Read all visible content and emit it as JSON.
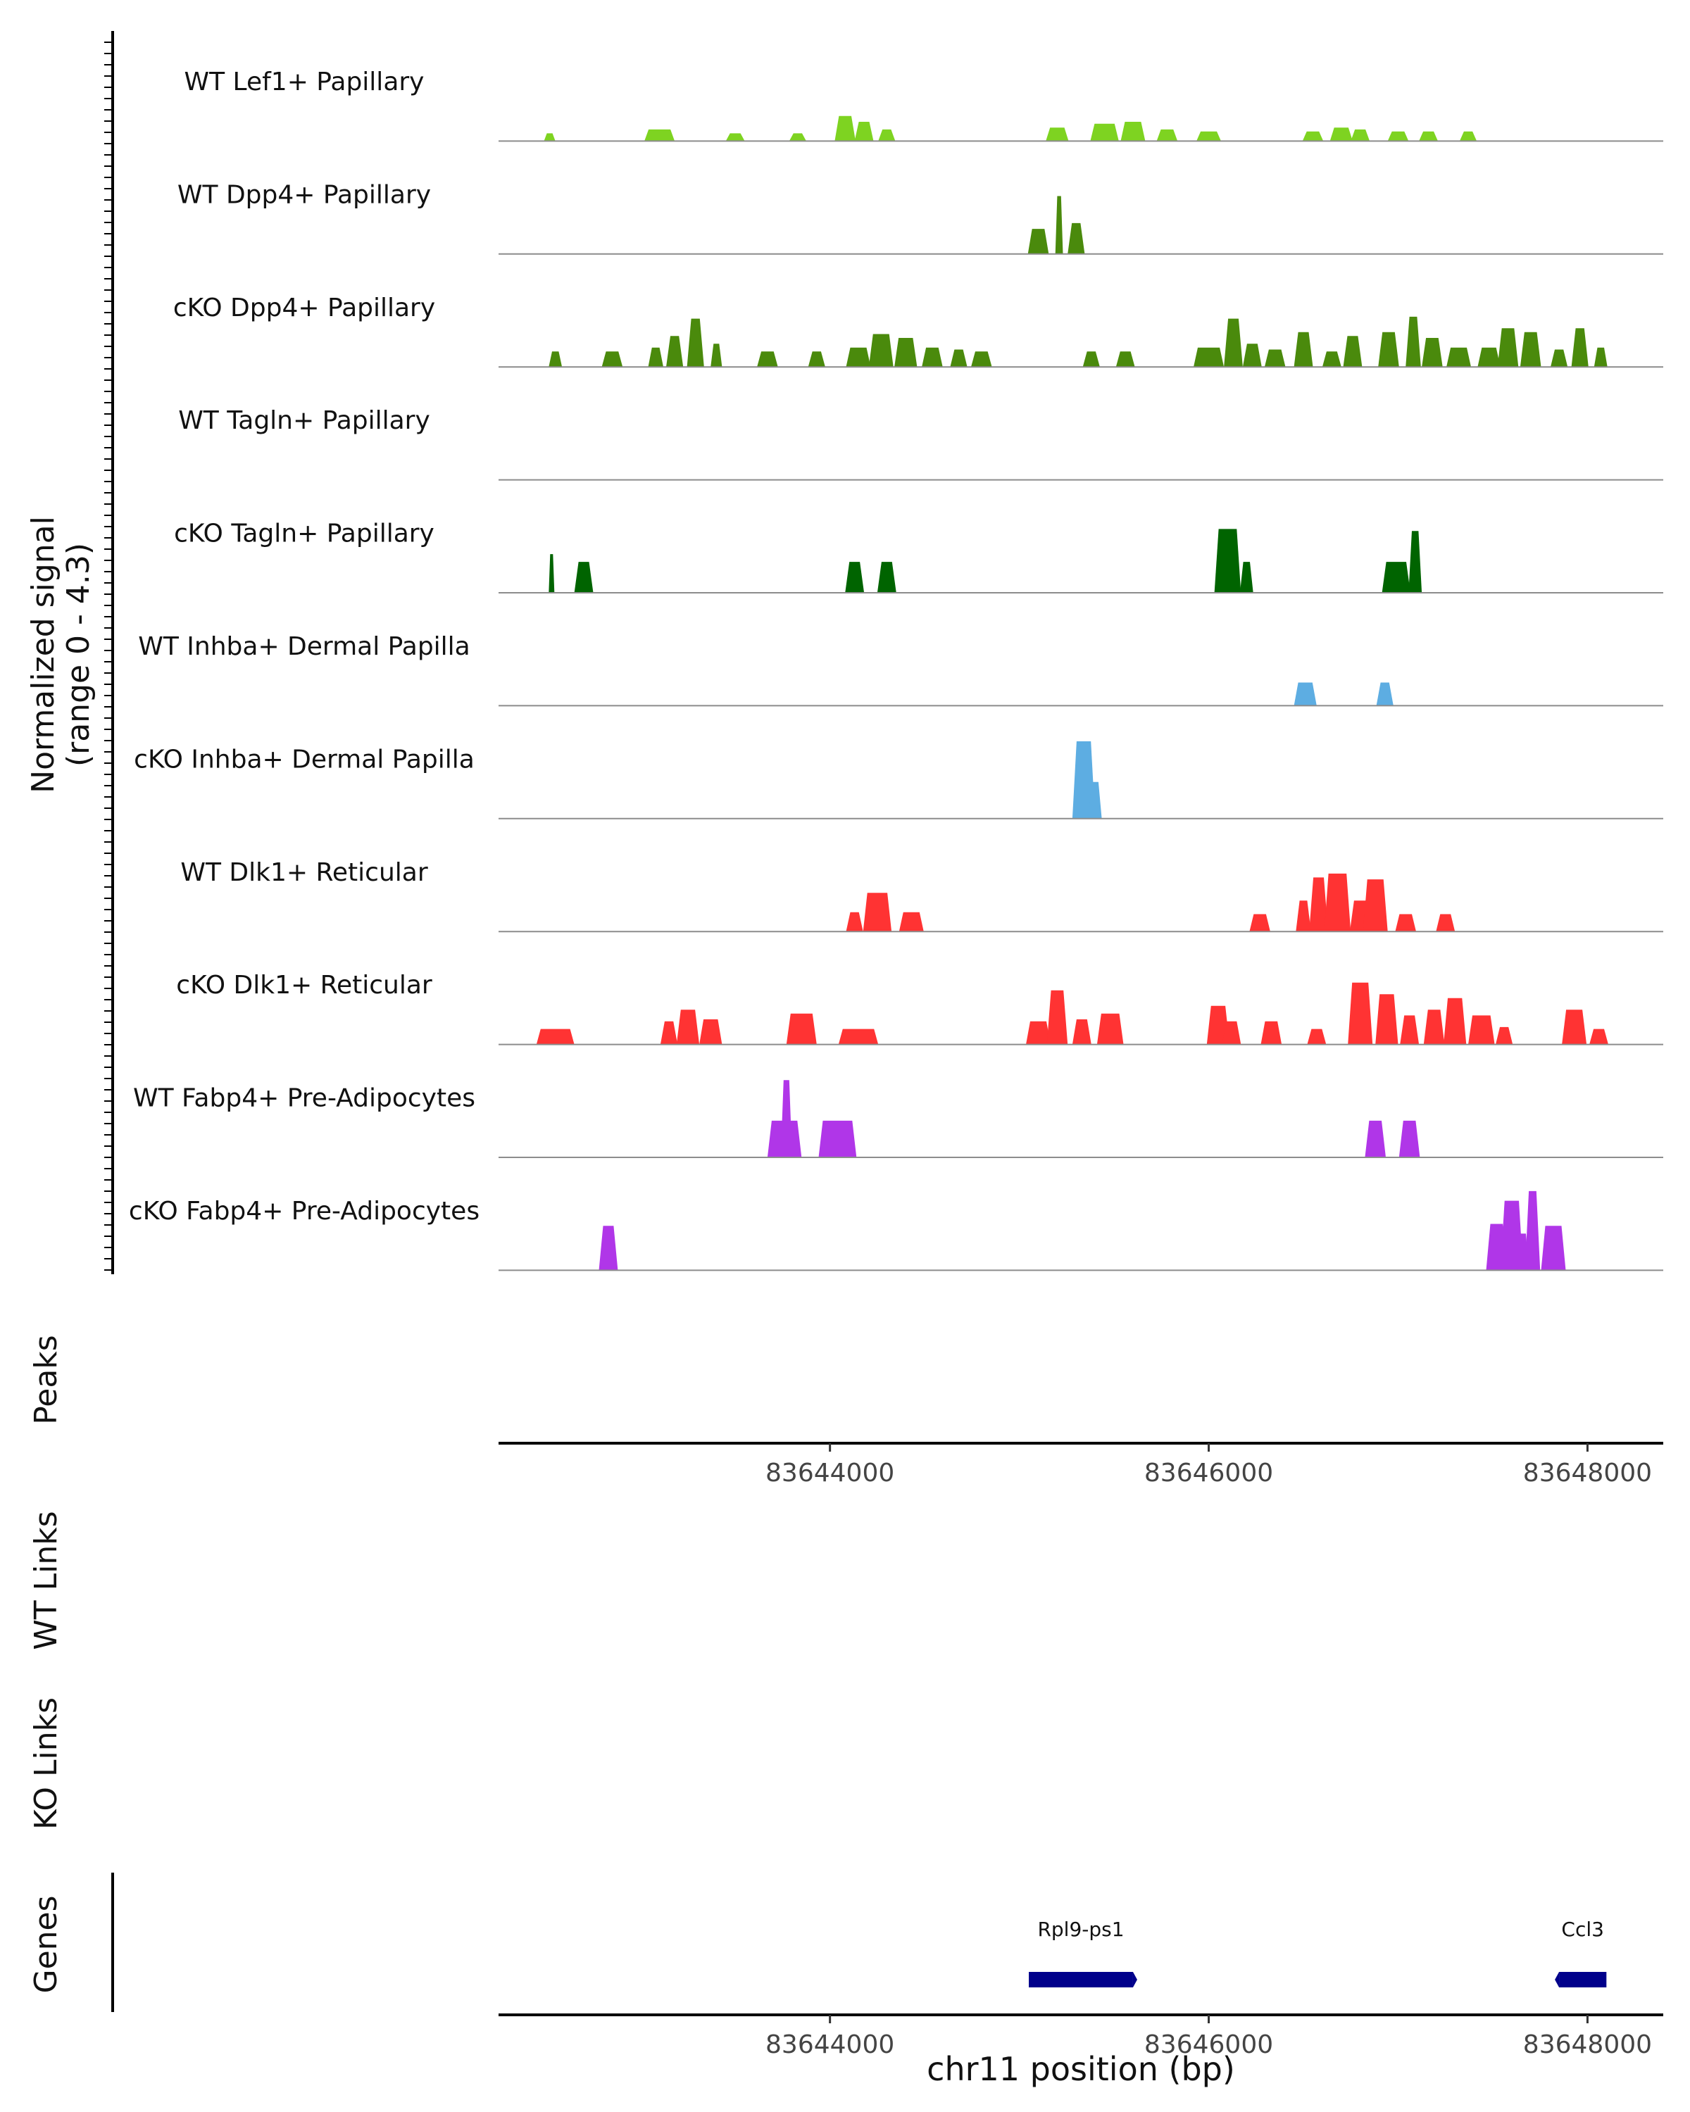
{
  "chart_data": {
    "type": "area",
    "title": "",
    "ylabel_line1": "Normalized signal",
    "ylabel_line2": "(range 0 - 4.3)",
    "ylim": [
      0,
      4.3
    ],
    "xlim": [
      83642250,
      83648400
    ],
    "xlabel": "chr11 position (bp)",
    "xticks": [
      83644000,
      83646000,
      83648000
    ],
    "xtick_labels": [
      "83644000",
      "83646000",
      "83648000"
    ],
    "panel_labels": {
      "peaks": "Peaks",
      "wt_links": "WT Links",
      "ko_links": "KO Links",
      "genes": "Genes"
    },
    "tracks": [
      {
        "label": "WT Lef1+ Papillary",
        "color": "#7ED321",
        "peaks": [
          [
            83642520,
            0.4,
            60
          ],
          [
            83643100,
            0.6,
            160
          ],
          [
            83643500,
            0.4,
            100
          ],
          [
            83643830,
            0.4,
            90
          ],
          [
            83644080,
            1.3,
            110
          ],
          [
            83644180,
            1.0,
            100
          ],
          [
            83644300,
            0.6,
            90
          ],
          [
            83645200,
            0.7,
            120
          ],
          [
            83645450,
            0.9,
            150
          ],
          [
            83645600,
            1.0,
            130
          ],
          [
            83645780,
            0.6,
            110
          ],
          [
            83646000,
            0.5,
            130
          ],
          [
            83646550,
            0.5,
            110
          ],
          [
            83646700,
            0.7,
            120
          ],
          [
            83646800,
            0.6,
            100
          ],
          [
            83647000,
            0.5,
            110
          ],
          [
            83647160,
            0.5,
            100
          ],
          [
            83647370,
            0.5,
            90
          ]
        ]
      },
      {
        "label": "WT Dpp4+ Papillary",
        "color": "#4A8A0C",
        "peaks": [
          [
            83645100,
            1.3,
            110
          ],
          [
            83645210,
            3.0,
            40
          ],
          [
            83645300,
            1.6,
            90
          ]
        ]
      },
      {
        "label": "cKO Dpp4+ Papillary",
        "color": "#4A8A0C",
        "peaks": [
          [
            83642550,
            0.8,
            70
          ],
          [
            83642850,
            0.8,
            110
          ],
          [
            83643080,
            1.0,
            80
          ],
          [
            83643180,
            1.6,
            90
          ],
          [
            83643290,
            2.5,
            90
          ],
          [
            83643400,
            1.2,
            60
          ],
          [
            83643670,
            0.8,
            110
          ],
          [
            83643930,
            0.8,
            90
          ],
          [
            83644150,
            1.0,
            130
          ],
          [
            83644270,
            1.7,
            130
          ],
          [
            83644400,
            1.5,
            120
          ],
          [
            83644540,
            1.0,
            110
          ],
          [
            83644680,
            0.9,
            90
          ],
          [
            83644800,
            0.8,
            110
          ],
          [
            83645380,
            0.8,
            90
          ],
          [
            83645560,
            0.8,
            100
          ],
          [
            83646000,
            1.0,
            160
          ],
          [
            83646130,
            2.5,
            100
          ],
          [
            83646230,
            1.2,
            100
          ],
          [
            83646350,
            0.9,
            110
          ],
          [
            83646500,
            1.8,
            100
          ],
          [
            83646650,
            0.8,
            100
          ],
          [
            83646760,
            1.6,
            100
          ],
          [
            83646950,
            1.8,
            110
          ],
          [
            83647080,
            2.6,
            80
          ],
          [
            83647180,
            1.5,
            110
          ],
          [
            83647320,
            1.0,
            130
          ],
          [
            83647480,
            1.0,
            120
          ],
          [
            83647580,
            2.0,
            110
          ],
          [
            83647700,
            1.8,
            110
          ],
          [
            83647850,
            0.9,
            90
          ],
          [
            83647960,
            2.0,
            90
          ],
          [
            83648070,
            1.0,
            70
          ]
        ]
      },
      {
        "label": "WT Tagln+ Papillary",
        "color": "#006400",
        "peaks": []
      },
      {
        "label": "cKO Tagln+ Papillary",
        "color": "#006400",
        "peaks": [
          [
            83642530,
            2.0,
            30
          ],
          [
            83642700,
            1.6,
            100
          ],
          [
            83644130,
            1.6,
            100
          ],
          [
            83644300,
            1.6,
            100
          ],
          [
            83646100,
            3.3,
            140
          ],
          [
            83646200,
            1.6,
            70
          ],
          [
            83646990,
            1.6,
            150
          ],
          [
            83647090,
            3.2,
            70
          ]
        ]
      },
      {
        "label": "WT Inhba+ Dermal Papilla",
        "color": "#5DADE2",
        "peaks": [
          [
            83646510,
            1.2,
            120
          ],
          [
            83646930,
            1.2,
            90
          ]
        ]
      },
      {
        "label": "cKO Inhba+ Dermal Papilla",
        "color": "#5DADE2",
        "peaks": [
          [
            83645340,
            4.0,
            120
          ],
          [
            83645400,
            1.9,
            70
          ]
        ]
      },
      {
        "label": "WT Dlk1+ Reticular",
        "color": "#FF3333",
        "peaks": [
          [
            83644130,
            1.0,
            90
          ],
          [
            83644250,
            2.0,
            150
          ],
          [
            83644430,
            1.0,
            130
          ],
          [
            83646270,
            0.9,
            110
          ],
          [
            83646500,
            1.6,
            80
          ],
          [
            83646580,
            2.8,
            100
          ],
          [
            83646680,
            3.0,
            140
          ],
          [
            83646800,
            1.6,
            110
          ],
          [
            83646880,
            2.7,
            130
          ],
          [
            83647040,
            0.9,
            110
          ],
          [
            83647250,
            0.9,
            100
          ]
        ]
      },
      {
        "label": "cKO Dlk1+ Reticular",
        "color": "#FF3333",
        "peaks": [
          [
            83642550,
            0.8,
            200
          ],
          [
            83643150,
            1.2,
            90
          ],
          [
            83643250,
            1.8,
            120
          ],
          [
            83643370,
            1.3,
            120
          ],
          [
            83643850,
            1.6,
            160
          ],
          [
            83644150,
            0.8,
            210
          ],
          [
            83645100,
            1.2,
            130
          ],
          [
            83645200,
            2.8,
            110
          ],
          [
            83645330,
            1.3,
            100
          ],
          [
            83645480,
            1.6,
            140
          ],
          [
            83646050,
            2.0,
            120
          ],
          [
            83646120,
            1.2,
            100
          ],
          [
            83646330,
            1.2,
            110
          ],
          [
            83646570,
            0.8,
            100
          ],
          [
            83646800,
            3.2,
            130
          ],
          [
            83646940,
            2.6,
            120
          ],
          [
            83647060,
            1.5,
            100
          ],
          [
            83647190,
            1.8,
            110
          ],
          [
            83647300,
            2.4,
            120
          ],
          [
            83647440,
            1.5,
            140
          ],
          [
            83647560,
            0.9,
            90
          ],
          [
            83647930,
            1.8,
            130
          ],
          [
            83648060,
            0.8,
            100
          ]
        ]
      },
      {
        "label": "WT Fabp4+ Pre-Adipocytes",
        "color": "#B036E8",
        "peaks": [
          [
            83643760,
            1.9,
            180
          ],
          [
            83643770,
            4.0,
            60
          ],
          [
            83644040,
            1.9,
            200
          ],
          [
            83646880,
            1.9,
            110
          ],
          [
            83647060,
            1.9,
            110
          ]
        ]
      },
      {
        "label": "cKO Fabp4+ Pre-Adipocytes",
        "color": "#B036E8",
        "peaks": [
          [
            83642830,
            2.3,
            100
          ],
          [
            83647520,
            2.4,
            110
          ],
          [
            83647600,
            3.6,
            120
          ],
          [
            83647660,
            1.9,
            60
          ],
          [
            83647710,
            4.1,
            80
          ],
          [
            83647820,
            2.3,
            130
          ]
        ]
      }
    ],
    "genes": [
      {
        "name": "Rpl9-ps1",
        "start": 83645050,
        "end": 83645600,
        "strand": "+",
        "color": "#00008B"
      },
      {
        "name": "Ccl3",
        "start": 83647850,
        "end": 83648100,
        "strand": "-",
        "color": "#00008B"
      }
    ]
  }
}
